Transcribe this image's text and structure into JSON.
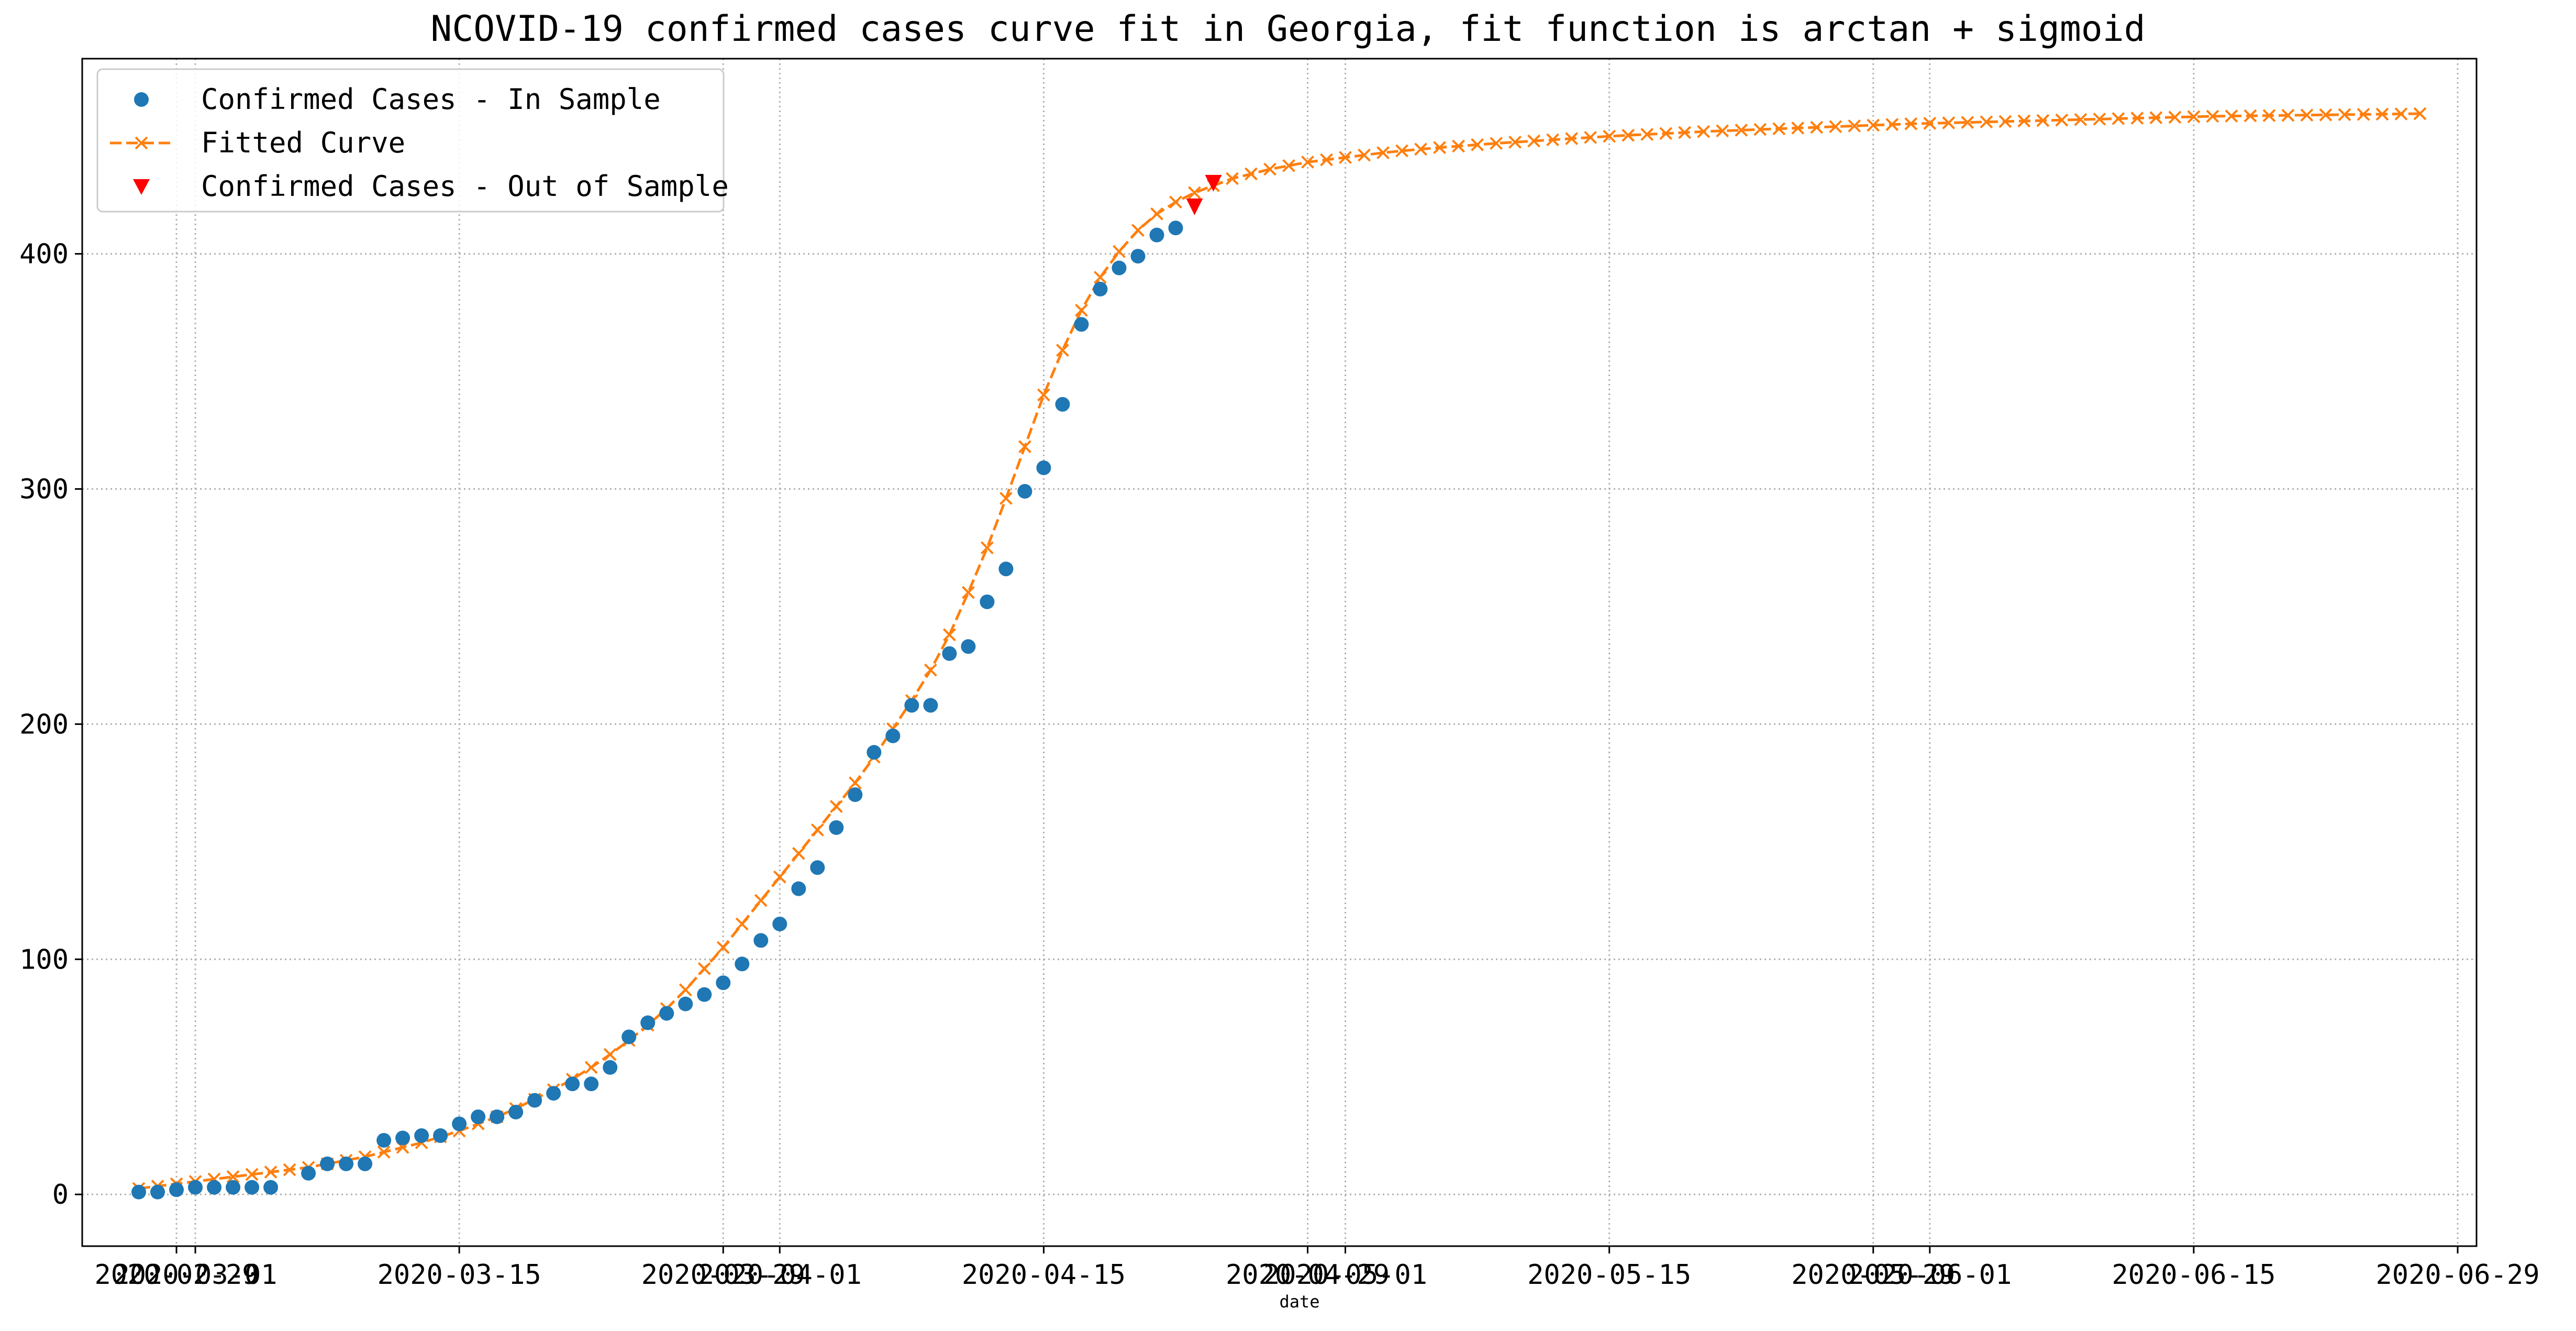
{
  "chart_data": {
    "type": "scatter",
    "title": "NCOVID-19 confirmed cases curve fit in Georgia, fit function is arctan + sigmoid",
    "xlabel": "date",
    "ylabel": "",
    "x_start": "2020-02-27",
    "xlim": [
      "2020-02-24",
      "2020-06-30"
    ],
    "ylim": [
      -22,
      483
    ],
    "grid": true,
    "legend_position": "upper-left",
    "x_ticks": [
      {
        "date": "2020-02-29",
        "label": "2020-02-29"
      },
      {
        "date": "2020-03-01",
        "label": "2020-03-01"
      },
      {
        "date": "2020-03-15",
        "label": "2020-03-15"
      },
      {
        "date": "2020-03-29",
        "label": "2020-03-29"
      },
      {
        "date": "2020-04-01",
        "label": "2020-04-01"
      },
      {
        "date": "2020-04-15",
        "label": "2020-04-15"
      },
      {
        "date": "2020-04-29",
        "label": "2020-04-29"
      },
      {
        "date": "2020-05-01",
        "label": "2020-05-01"
      },
      {
        "date": "2020-05-15",
        "label": "2020-05-15"
      },
      {
        "date": "2020-05-29",
        "label": "2020-05-29"
      },
      {
        "date": "2020-06-01",
        "label": "2020-06-01"
      },
      {
        "date": "2020-06-15",
        "label": "2020-06-15"
      },
      {
        "date": "2020-06-29",
        "label": "2020-06-29"
      }
    ],
    "y_ticks": [
      0,
      100,
      200,
      300,
      400
    ],
    "series": [
      {
        "name": "Confirmed Cases - In Sample",
        "marker": "circle",
        "color": "#1f77b4",
        "points": [
          [
            "2020-02-27",
            1
          ],
          [
            "2020-02-28",
            1
          ],
          [
            "2020-02-29",
            2
          ],
          [
            "2020-03-01",
            3
          ],
          [
            "2020-03-02",
            3
          ],
          [
            "2020-03-03",
            3
          ],
          [
            "2020-03-04",
            3
          ],
          [
            "2020-03-05",
            3
          ],
          [
            "2020-03-07",
            9
          ],
          [
            "2020-03-08",
            13
          ],
          [
            "2020-03-09",
            13
          ],
          [
            "2020-03-10",
            13
          ],
          [
            "2020-03-11",
            23
          ],
          [
            "2020-03-12",
            24
          ],
          [
            "2020-03-13",
            25
          ],
          [
            "2020-03-14",
            25
          ],
          [
            "2020-03-15",
            30
          ],
          [
            "2020-03-16",
            33
          ],
          [
            "2020-03-17",
            33
          ],
          [
            "2020-03-18",
            35
          ],
          [
            "2020-03-19",
            40
          ],
          [
            "2020-03-20",
            43
          ],
          [
            "2020-03-21",
            47
          ],
          [
            "2020-03-22",
            47
          ],
          [
            "2020-03-23",
            54
          ],
          [
            "2020-03-24",
            67
          ],
          [
            "2020-03-25",
            73
          ],
          [
            "2020-03-26",
            77
          ],
          [
            "2020-03-27",
            81
          ],
          [
            "2020-03-28",
            85
          ],
          [
            "2020-03-29",
            90
          ],
          [
            "2020-03-30",
            98
          ],
          [
            "2020-03-31",
            108
          ],
          [
            "2020-04-01",
            115
          ],
          [
            "2020-04-02",
            130
          ],
          [
            "2020-04-03",
            139
          ],
          [
            "2020-04-04",
            156
          ],
          [
            "2020-04-05",
            170
          ],
          [
            "2020-04-06",
            188
          ],
          [
            "2020-04-07",
            195
          ],
          [
            "2020-04-08",
            208
          ],
          [
            "2020-04-09",
            208
          ],
          [
            "2020-04-10",
            230
          ],
          [
            "2020-04-11",
            233
          ],
          [
            "2020-04-12",
            252
          ],
          [
            "2020-04-13",
            266
          ],
          [
            "2020-04-14",
            299
          ],
          [
            "2020-04-15",
            309
          ],
          [
            "2020-04-16",
            336
          ],
          [
            "2020-04-17",
            370
          ],
          [
            "2020-04-18",
            385
          ],
          [
            "2020-04-19",
            394
          ],
          [
            "2020-04-20",
            399
          ],
          [
            "2020-04-21",
            408
          ],
          [
            "2020-04-22",
            411
          ]
        ]
      },
      {
        "name": "Fitted Curve",
        "marker": "x",
        "line_style": "dashed",
        "color": "#ff7f0e",
        "x_end": "2020-06-26",
        "values": [
          2.5,
          3.5,
          4.5,
          5.5,
          6.5,
          7.5,
          8.5,
          9.5,
          10.5,
          11.5,
          13,
          14.5,
          16,
          18,
          20,
          22,
          24.5,
          27,
          30,
          33,
          36.5,
          40.5,
          44.5,
          49,
          54,
          59.5,
          65.5,
          72,
          79,
          87,
          96,
          105,
          115,
          125,
          135,
          145,
          155,
          165,
          175,
          186,
          198,
          210,
          223,
          238,
          256,
          275,
          296,
          318,
          340,
          359,
          376,
          390,
          401,
          410,
          417,
          422,
          426,
          429,
          432,
          434,
          436,
          437.5,
          439,
          440,
          441,
          442,
          443,
          443.8,
          444.5,
          445.2,
          445.8,
          446.4,
          447,
          447.5,
          448,
          448.5,
          449,
          449.5,
          450,
          450.4,
          450.8,
          451.2,
          451.6,
          452,
          452.3,
          452.6,
          452.9,
          453.2,
          453.5,
          453.8,
          454.1,
          454.4,
          454.7,
          455,
          455.3,
          455.5,
          455.7,
          455.9,
          456.1,
          456.3,
          456.5,
          456.7,
          456.9,
          457.1,
          457.3,
          457.5,
          457.7,
          457.9,
          458.1,
          458.3,
          458.5,
          458.6,
          458.7,
          458.8,
          458.9,
          459,
          459.1,
          459.2,
          459.3,
          459.4,
          459.5,
          459.6
        ]
      },
      {
        "name": "Confirmed Cases - Out of Sample",
        "marker": "triangle-down",
        "color": "#ff0000",
        "points": [
          [
            "2020-04-23",
            420
          ],
          [
            "2020-04-24",
            430
          ]
        ]
      }
    ]
  }
}
